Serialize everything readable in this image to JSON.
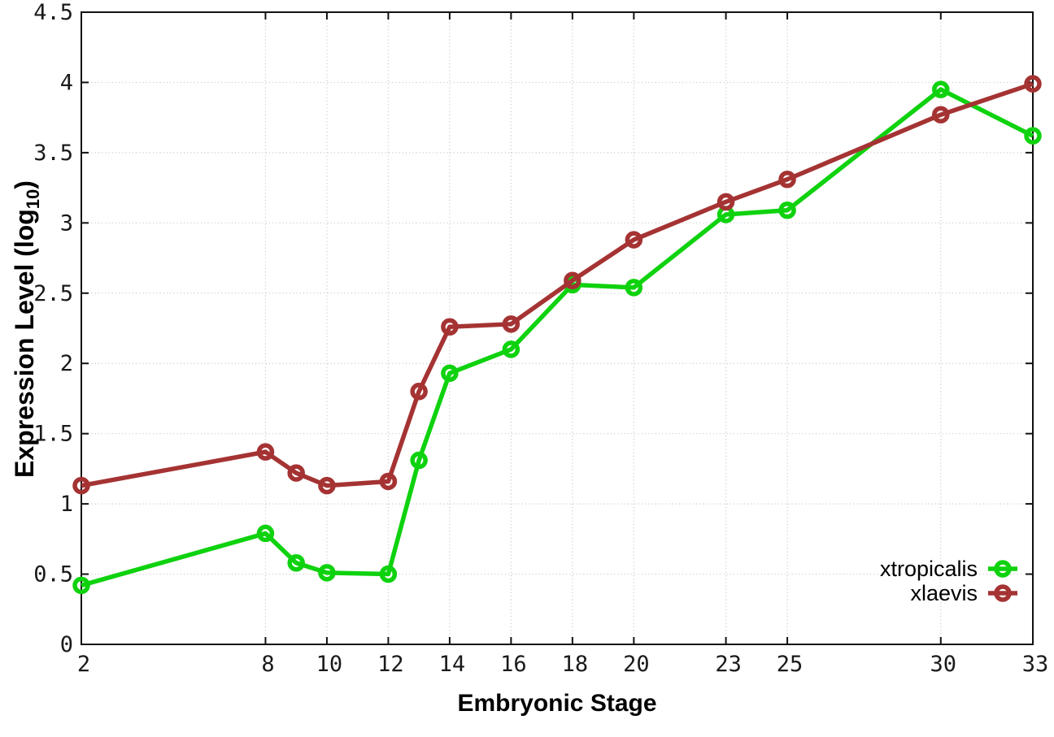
{
  "chart_data": {
    "type": "line",
    "title": "",
    "xlabel": "Embryonic Stage",
    "ylabel": "Expression Level (log10)",
    "ylabel_parts": {
      "main": "Expression Level (log",
      "sub": "10",
      "close": ")"
    },
    "xlim": [
      2,
      33
    ],
    "ylim": [
      0,
      4.5
    ],
    "grid": true,
    "legend_position": "bottom-right",
    "x_ticks": [
      {
        "v": 2,
        "label": "2"
      },
      {
        "v": 8,
        "label": "8"
      },
      {
        "v": 10,
        "label": "10"
      },
      {
        "v": 12,
        "label": "12"
      },
      {
        "v": 14,
        "label": "14"
      },
      {
        "v": 16,
        "label": "16"
      },
      {
        "v": 18,
        "label": "18"
      },
      {
        "v": 20,
        "label": "20"
      },
      {
        "v": 23,
        "label": "23"
      },
      {
        "v": 25,
        "label": "25"
      },
      {
        "v": 30,
        "label": "30"
      },
      {
        "v": 33,
        "label": "33"
      }
    ],
    "y_ticks": [
      {
        "v": 0,
        "label": "0"
      },
      {
        "v": 0.5,
        "label": "0.5"
      },
      {
        "v": 1,
        "label": "1"
      },
      {
        "v": 1.5,
        "label": "1.5"
      },
      {
        "v": 2,
        "label": "2"
      },
      {
        "v": 2.5,
        "label": "2.5"
      },
      {
        "v": 3,
        "label": "3"
      },
      {
        "v": 3.5,
        "label": "3.5"
      },
      {
        "v": 4,
        "label": "4"
      },
      {
        "v": 4.5,
        "label": "4.5"
      }
    ],
    "x": [
      2,
      8,
      9,
      10,
      12,
      13,
      14,
      16,
      18,
      20,
      23,
      25,
      30,
      33
    ],
    "series": [
      {
        "name": "xtropicalis",
        "color": "#0fd20f",
        "values": [
          0.42,
          0.79,
          0.58,
          0.51,
          0.5,
          1.31,
          1.93,
          2.1,
          2.56,
          2.54,
          3.06,
          3.09,
          3.95,
          3.62
        ]
      },
      {
        "name": "xlaevis",
        "color": "#a53333",
        "values": [
          1.13,
          1.37,
          1.22,
          1.13,
          1.16,
          1.8,
          2.26,
          2.28,
          2.59,
          2.88,
          3.15,
          3.31,
          3.77,
          3.99
        ]
      }
    ],
    "colors": {
      "grid": "#c3c3c3",
      "border": "#111111",
      "tick_text": "#1a1a1a"
    }
  }
}
